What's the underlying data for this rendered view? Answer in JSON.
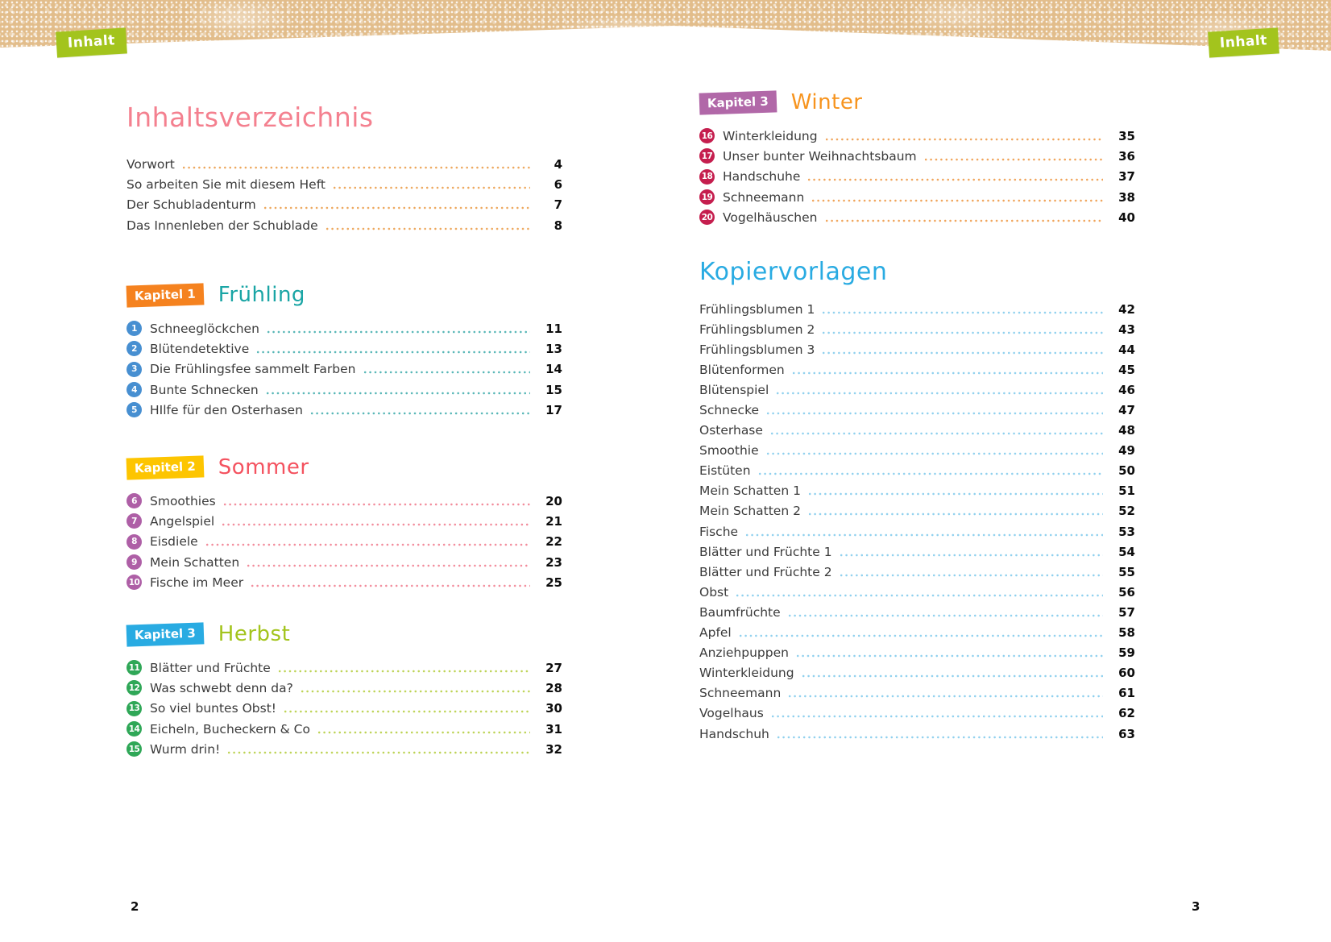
{
  "page": {
    "tab_label": "Inhalt",
    "title": "Inhaltsverzeichnis",
    "left_folio": "2",
    "right_folio": "3"
  },
  "colors": {
    "band": "#e2bd8b",
    "tab_bg": "#a3c41d",
    "title": "#f4808f",
    "front_matter_dots": "#eda75c",
    "text": "#3b3b3b",
    "page_number": "#0d0d0d"
  },
  "front_matter": [
    {
      "label": "Vorwort",
      "page": "4"
    },
    {
      "label": "So arbeiten Sie mit diesem Heft",
      "page": "6"
    },
    {
      "label": "Der Schubladenturm",
      "page": "7"
    },
    {
      "label": "Das Innenleben der Schublade",
      "page": "8"
    }
  ],
  "chapters": [
    {
      "badge": "Kapitel 1",
      "title": "Frühling",
      "colors": {
        "badge_bg": "#f5821f",
        "title": "#1aa5a5",
        "circle": "#478fd1",
        "dots": "#56b6b6"
      },
      "items": [
        {
          "num": "1",
          "label": "Schneeglöckchen",
          "page": "11"
        },
        {
          "num": "2",
          "label": "Blütendetektive",
          "page": "13"
        },
        {
          "num": "3",
          "label": "Die Frühlingsfee sammelt Farben",
          "page": "14"
        },
        {
          "num": "4",
          "label": "Bunte Schnecken",
          "page": "15"
        },
        {
          "num": "5",
          "label": "HIlfe für den Osterhasen",
          "page": "17"
        }
      ]
    },
    {
      "badge": "Kapitel 2",
      "title": "Sommer",
      "colors": {
        "badge_bg": "#fdc501",
        "title": "#f4525f",
        "circle": "#ae5fa6",
        "dots": "#f28b9b"
      },
      "items": [
        {
          "num": "6",
          "label": "Smoothies",
          "page": "20"
        },
        {
          "num": "7",
          "label": "Angelspiel",
          "page": "21"
        },
        {
          "num": "8",
          "label": "Eisdiele",
          "page": "22"
        },
        {
          "num": "9",
          "label": "Mein Schatten",
          "page": "23"
        },
        {
          "num": "10",
          "label": "Fische im Meer",
          "page": "25"
        }
      ]
    },
    {
      "badge": "Kapitel 3",
      "title": "Herbst",
      "colors": {
        "badge_bg": "#29abe2",
        "title": "#a3c41d",
        "circle": "#2fa757",
        "dots": "#bdd355"
      },
      "items": [
        {
          "num": "11",
          "label": "Blätter und Früchte",
          "page": "27"
        },
        {
          "num": "12",
          "label": "Was schwebt denn da?",
          "page": "28"
        },
        {
          "num": "13",
          "label": "So viel buntes Obst!",
          "page": "30"
        },
        {
          "num": "14",
          "label": "Eicheln, Bucheckern & Co",
          "page": "31"
        },
        {
          "num": "15",
          "label": "Wurm drin!",
          "page": "32"
        }
      ]
    },
    {
      "badge": "Kapitel 3",
      "title": "Winter",
      "colors": {
        "badge_bg": "#b168a8",
        "title": "#f7941e",
        "circle": "#c51e4e",
        "dots": "#f0a45a"
      },
      "items": [
        {
          "num": "16",
          "label": "Winterkleidung",
          "page": "35"
        },
        {
          "num": "17",
          "label": "Unser bunter Weihnachtsbaum",
          "page": "36"
        },
        {
          "num": "18",
          "label": "Handschuhe",
          "page": "37"
        },
        {
          "num": "19",
          "label": "Schneemann",
          "page": "38"
        },
        {
          "num": "20",
          "label": "Vogelhäuschen",
          "page": "40"
        }
      ]
    }
  ],
  "kopiervorlagen": {
    "title": "Kopiervorlagen",
    "colors": {
      "title": "#29abe2",
      "dots": "#8fd0ee"
    },
    "items": [
      {
        "label": "Frühlingsblumen 1",
        "page": "42"
      },
      {
        "label": "Frühlingsblumen 2",
        "page": "43"
      },
      {
        "label": "Frühlingsblumen 3",
        "page": "44"
      },
      {
        "label": "Blütenformen",
        "page": "45"
      },
      {
        "label": "Blütenspiel",
        "page": "46"
      },
      {
        "label": "Schnecke",
        "page": "47"
      },
      {
        "label": "Osterhase",
        "page": "48"
      },
      {
        "label": "Smoothie",
        "page": "49"
      },
      {
        "label": "Eistüten",
        "page": "50"
      },
      {
        "label": "Mein Schatten 1",
        "page": "51"
      },
      {
        "label": "Mein Schatten 2",
        "page": "52"
      },
      {
        "label": "Fische",
        "page": "53"
      },
      {
        "label": "Blätter und Früchte 1",
        "page": "54"
      },
      {
        "label": "Blätter und Früchte 2",
        "page": "55"
      },
      {
        "label": "Obst",
        "page": "56"
      },
      {
        "label": "Baumfrüchte",
        "page": "57"
      },
      {
        "label": "Apfel",
        "page": "58"
      },
      {
        "label": "Anziehpuppen",
        "page": "59"
      },
      {
        "label": "Winterkleidung",
        "page": "60"
      },
      {
        "label": "Schneemann",
        "page": "61"
      },
      {
        "label": "Vogelhaus",
        "page": "62"
      },
      {
        "label": "Handschuh",
        "page": "63"
      }
    ]
  }
}
